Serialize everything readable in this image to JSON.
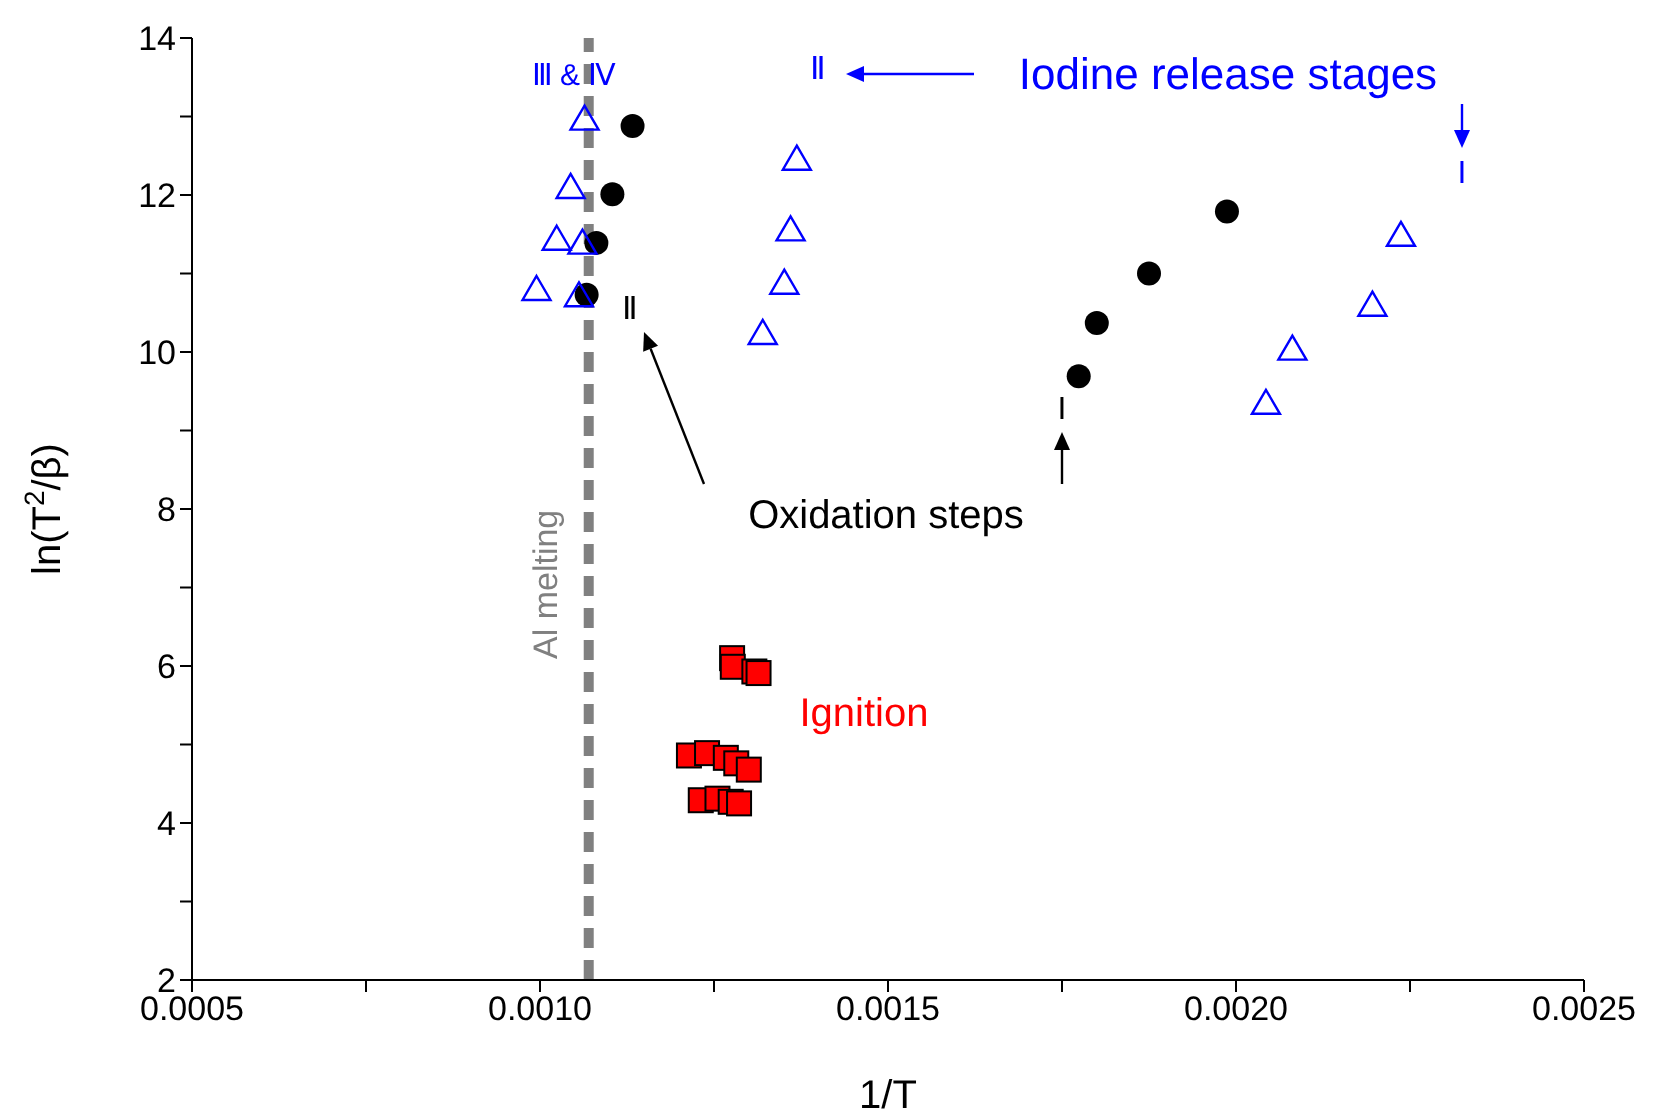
{
  "chart_data": {
    "type": "scatter",
    "xlabel": "1/T",
    "ylabel": "ln(T$^{2}$/β)",
    "xlim": [
      0.0005,
      0.0025
    ],
    "xticks": [
      {
        "value": 0.0005,
        "label": "0.0005"
      },
      {
        "value": 0.00075,
        "label": null
      },
      {
        "value": 0.001,
        "label": "0.0010"
      },
      {
        "value": 0.00125,
        "label": null
      },
      {
        "value": 0.0015,
        "label": "0.0015"
      },
      {
        "value": 0.00175,
        "label": null
      },
      {
        "value": 0.002,
        "label": "0.0020"
      },
      {
        "value": 0.00225,
        "label": null
      },
      {
        "value": 0.0025,
        "label": "0.0025"
      }
    ],
    "ylim": [
      2,
      14
    ],
    "yticks": [
      2,
      {
        "value": 3,
        "label": null
      },
      4,
      {
        "value": 5,
        "label": null
      },
      6,
      {
        "value": 7,
        "label": null
      },
      8,
      {
        "value": 9,
        "label": null
      },
      10,
      {
        "value": 11,
        "label": null
      },
      12,
      {
        "value": 13,
        "label": null
      },
      14
    ],
    "grid": false,
    "legend": false,
    "series": [
      {
        "color": "#000000",
        "marker": "circle",
        "x": [
          0.001133,
          0.001104,
          0.001081,
          0.001067,
          0.001774,
          0.0018,
          0.001875,
          0.001987
        ],
        "values": [
          12.88,
          12.01,
          11.39,
          10.73,
          9.69,
          10.37,
          11.0,
          11.79
        ]
      },
      {
        "color": "#0000ff",
        "marker": "triangle",
        "x": [
          0.001064,
          0.001044,
          0.001024,
          0.001061,
          0.000995,
          0.001056,
          0.001369,
          0.00136,
          0.001351,
          0.00132,
          0.002237,
          0.002196,
          0.002081,
          0.002043
        ],
        "values": [
          12.96,
          12.09,
          11.43,
          11.38,
          10.79,
          10.71,
          12.45,
          11.55,
          10.87,
          10.23,
          11.48,
          10.59,
          10.03,
          9.34
        ]
      },
      {
        "color": "#ff0000",
        "marker": "square",
        "x": [
          0.001276,
          0.001277,
          0.001308,
          0.001314,
          0.001214,
          0.00124,
          0.001267,
          0.001282,
          0.0013,
          0.001231,
          0.001255,
          0.001274,
          0.001286
        ],
        "values": [
          6.1,
          5.99,
          5.93,
          5.91,
          4.86,
          4.89,
          4.83,
          4.76,
          4.68,
          4.29,
          4.31,
          4.27,
          4.25
        ]
      }
    ],
    "ref_lines": [
      {
        "axis": "x",
        "value": 0.00107,
        "label": "Al melting",
        "color": "#808080",
        "line_style": "dashed"
      }
    ],
    "annotations": [
      "Ⅲ & Ⅳ",
      "Ⅱ",
      "Iodine release stages",
      "I",
      "Ⅱ",
      "I",
      "Oxidation steps",
      "Ignition"
    ]
  }
}
